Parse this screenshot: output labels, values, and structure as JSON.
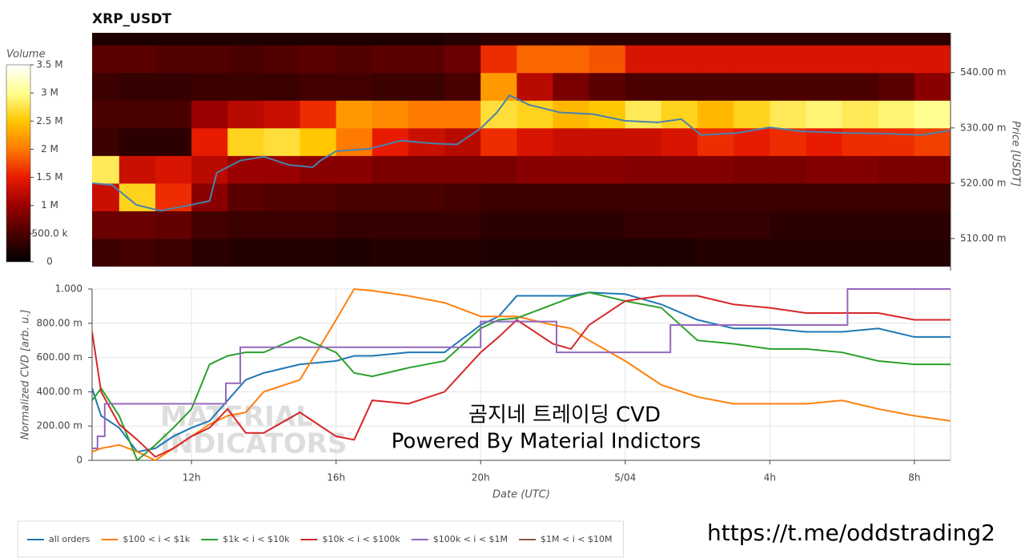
{
  "chart_data": [
    {
      "type": "heatmap",
      "title": "XRP_USDT",
      "y_label": "Price [USDT]",
      "y_axis_side": "right",
      "xlim": [
        9.25,
        33
      ],
      "ylim": [
        0.5042,
        0.5472
      ],
      "yticks": [
        {
          "value": 0.51,
          "label": "510.00 m"
        },
        {
          "value": 0.52,
          "label": "520.00 m"
        },
        {
          "value": 0.53,
          "label": "530.00 m"
        },
        {
          "value": 0.54,
          "label": "540.00 m"
        }
      ],
      "x_bins": [
        9.25,
        10,
        11,
        12,
        13,
        14,
        15,
        16,
        17,
        18,
        19,
        20,
        21,
        22,
        23,
        24,
        25,
        26,
        27,
        28,
        29,
        30,
        31,
        32,
        33
      ],
      "y_bins": [
        0.505,
        0.51,
        0.515,
        0.52,
        0.525,
        0.53,
        0.535,
        0.54,
        0.545,
        0.55
      ],
      "z": [
        [
          400000,
          450000,
          400000,
          300000,
          250000,
          250000,
          250000,
          200000,
          250000,
          250000,
          250000,
          200000,
          200000,
          200000,
          200000,
          200000,
          200000,
          250000,
          250000,
          250000,
          250000,
          250000,
          250000,
          250000
        ],
        [
          700000,
          700000,
          650000,
          450000,
          400000,
          400000,
          400000,
          350000,
          350000,
          350000,
          350000,
          300000,
          300000,
          300000,
          300000,
          350000,
          350000,
          350000,
          350000,
          300000,
          300000,
          300000,
          300000,
          300000
        ],
        [
          1300000,
          2600000,
          1600000,
          900000,
          600000,
          550000,
          550000,
          500000,
          500000,
          500000,
          450000,
          400000,
          400000,
          400000,
          400000,
          400000,
          400000,
          400000,
          400000,
          400000,
          400000,
          400000,
          400000,
          400000
        ],
        [
          2800000,
          1300000,
          1400000,
          1200000,
          1000000,
          1000000,
          900000,
          900000,
          800000,
          800000,
          800000,
          800000,
          900000,
          900000,
          900000,
          850000,
          850000,
          850000,
          800000,
          800000,
          850000,
          850000,
          800000,
          800000
        ],
        [
          400000,
          300000,
          300000,
          1500000,
          2600000,
          2700000,
          2500000,
          2000000,
          1500000,
          1300000,
          1200000,
          1600000,
          1400000,
          1300000,
          1300000,
          1300000,
          1400000,
          1600000,
          1500000,
          1600000,
          1500000,
          1600000,
          1600000,
          1700000
        ],
        [
          500000,
          500000,
          500000,
          1000000,
          1200000,
          1300000,
          1600000,
          2200000,
          2100000,
          2000000,
          2000000,
          2700000,
          2600000,
          2400000,
          2500000,
          2800000,
          2600000,
          2400000,
          2600000,
          2800000,
          2900000,
          2800000,
          2900000,
          3000000
        ],
        [
          400000,
          350000,
          350000,
          400000,
          400000,
          400000,
          450000,
          450000,
          400000,
          400000,
          500000,
          2200000,
          1200000,
          800000,
          600000,
          500000,
          500000,
          500000,
          500000,
          500000,
          500000,
          500000,
          600000,
          900000
        ],
        [
          600000,
          600000,
          550000,
          550000,
          500000,
          550000,
          600000,
          550000,
          600000,
          600000,
          700000,
          1600000,
          1900000,
          1900000,
          1800000,
          1400000,
          1400000,
          1400000,
          1400000,
          1400000,
          1400000,
          1400000,
          1400000,
          1400000
        ],
        [
          200000,
          200000,
          200000,
          200000,
          200000,
          200000,
          200000,
          200000,
          200000,
          200000,
          250000,
          300000,
          300000,
          300000,
          300000,
          300000,
          300000,
          300000,
          300000,
          300000,
          300000,
          300000,
          300000,
          300000
        ]
      ],
      "colorscale": [
        "#000000",
        "#4a0000",
        "#9a0000",
        "#e81a00",
        "#ff7a00",
        "#ffc800",
        "#ffff90",
        "#ffffff"
      ],
      "colorbar": {
        "title": "Volume",
        "lim": [
          0,
          3500000
        ],
        "ticks": [
          0,
          {
            "value": 500000,
            "label": "500.0 k"
          },
          {
            "value": 1000000,
            "label": "1 M"
          },
          {
            "value": 1500000,
            "label": "1.5 M"
          },
          {
            "value": 2000000,
            "label": "2 M"
          },
          {
            "value": 2500000,
            "label": "2.5 M"
          },
          {
            "value": 3000000,
            "label": "3 M"
          },
          {
            "value": 3500000,
            "label": "3.5 M"
          }
        ]
      },
      "line": {
        "color": "#4a82ad",
        "x": [
          9.25,
          9.8,
          10.47,
          11.14,
          12.0,
          12.5,
          12.7,
          13.35,
          14.0,
          14.7,
          15.35,
          15.57,
          16.0,
          16.9,
          17.8,
          18.67,
          19.34,
          20.0,
          20.45,
          20.8,
          21.33,
          22.2,
          23.1,
          24.0,
          24.9,
          25.55,
          26.1,
          27.1,
          28.0,
          28.87,
          30.0,
          31.1,
          32.2,
          33.0
        ],
        "values": [
          0.52,
          0.5197,
          0.5161,
          0.515,
          0.5161,
          0.5168,
          0.5219,
          0.5241,
          0.5248,
          0.5233,
          0.5229,
          0.5241,
          0.5258,
          0.5262,
          0.5277,
          0.5272,
          0.527,
          0.5299,
          0.5328,
          0.5359,
          0.5342,
          0.5328,
          0.5325,
          0.5313,
          0.531,
          0.5316,
          0.5287,
          0.5291,
          0.5301,
          0.5294,
          0.5291,
          0.529,
          0.5287,
          0.5296
        ]
      }
    },
    {
      "type": "line",
      "y_label": "Normalized CVD [arb. u.]",
      "x_label": "Date (UTC)",
      "xlim": [
        9.25,
        33
      ],
      "ylim": [
        0,
        1
      ],
      "xticks": [
        {
          "value": 12,
          "label": "12h"
        },
        {
          "value": 16,
          "label": "16h"
        },
        {
          "value": 20,
          "label": "20h"
        },
        {
          "value": 24,
          "label": "5/04"
        },
        {
          "value": 28,
          "label": "4h"
        },
        {
          "value": 32,
          "label": "8h"
        }
      ],
      "yticks": [
        0,
        {
          "value": 0.2,
          "label": "200.00 m"
        },
        {
          "value": 0.4,
          "label": "400.00 m"
        },
        {
          "value": 0.6,
          "label": "600.00 m"
        },
        {
          "value": 0.8,
          "label": "800.00 m"
        },
        {
          "value": 1,
          "label": "1.000"
        }
      ],
      "grid": true,
      "legend": "bottom-left",
      "x": [
        9.25,
        9.5,
        10,
        10.5,
        11,
        11.5,
        12,
        12.5,
        13,
        13.5,
        14,
        15,
        16,
        16.5,
        17,
        18,
        19,
        20,
        20.5,
        21,
        22,
        22.5,
        23,
        24,
        25,
        26,
        27,
        28,
        29,
        30,
        31,
        32,
        33
      ],
      "series": [
        {
          "name": "all orders",
          "color": "#1f77b4",
          "values": [
            0.42,
            0.26,
            0.19,
            0.05,
            0.07,
            0.14,
            0.19,
            0.23,
            0.35,
            0.47,
            0.51,
            0.56,
            0.58,
            0.61,
            0.61,
            0.63,
            0.63,
            0.79,
            0.84,
            0.96,
            0.96,
            0.96,
            0.98,
            0.97,
            0.91,
            0.82,
            0.77,
            0.77,
            0.75,
            0.75,
            0.77,
            0.72,
            0.72
          ]
        },
        {
          "name": "$100 < i < $1k",
          "color": "#ff7f0e",
          "values": [
            0.05,
            0.07,
            0.09,
            0.05,
            0,
            0.07,
            0.14,
            0.21,
            0.26,
            0.28,
            0.4,
            0.47,
            0.82,
            1.0,
            0.99,
            0.96,
            0.92,
            0.84,
            0.84,
            0.84,
            0.79,
            0.77,
            0.7,
            0.58,
            0.44,
            0.37,
            0.33,
            0.33,
            0.33,
            0.35,
            0.3,
            0.26,
            0.23
          ]
        },
        {
          "name": "$1k < i < $10k",
          "color": "#2ca02c",
          "values": [
            0.35,
            0.42,
            0.26,
            0,
            0.09,
            0.19,
            0.3,
            0.56,
            0.61,
            0.63,
            0.63,
            0.72,
            0.63,
            0.51,
            0.49,
            0.54,
            0.58,
            0.77,
            0.82,
            0.83,
            0.91,
            0.95,
            0.98,
            0.93,
            0.89,
            0.7,
            0.68,
            0.65,
            0.65,
            0.63,
            0.58,
            0.56,
            0.56
          ]
        },
        {
          "name": "$10k < i < $100k",
          "color": "#d62728",
          "values": [
            0.75,
            0.4,
            0.21,
            0.12,
            0.02,
            0.07,
            0.14,
            0.19,
            0.3,
            0.16,
            0.16,
            0.28,
            0.14,
            0.12,
            0.35,
            0.33,
            0.4,
            0.63,
            0.72,
            0.82,
            0.68,
            0.65,
            0.79,
            0.93,
            0.96,
            0.96,
            0.91,
            0.89,
            0.86,
            0.86,
            0.86,
            0.82,
            0.82
          ]
        },
        {
          "name": "$100k < i < $1M",
          "color": "#9467bd",
          "shape": "hv",
          "x": [
            9.25,
            9.4,
            9.6,
            12.95,
            13.35,
            20.0,
            22.1,
            25.25,
            30.15,
            33.0
          ],
          "values": [
            0.07,
            0.14,
            0.33,
            0.45,
            0.66,
            0.81,
            0.63,
            0.79,
            1.0,
            1.0
          ]
        },
        {
          "name": "$1M < i < $10M",
          "color": "#8c564b",
          "values": [
            null,
            null,
            null,
            null,
            null,
            null,
            null,
            null,
            null,
            null,
            null,
            null,
            null,
            null,
            null,
            null,
            null,
            null,
            null,
            null,
            null,
            null,
            null,
            null,
            null,
            null,
            null,
            null,
            null,
            null,
            null,
            null,
            null
          ]
        }
      ],
      "annotations": {
        "watermark": [
          "MATERIAL",
          "INDICATORS"
        ],
        "title": "곰지네 트레이딩 CVD",
        "subtitle": "Powered By Material Indictors",
        "link": "https://t.me/oddstrading2"
      }
    }
  ]
}
